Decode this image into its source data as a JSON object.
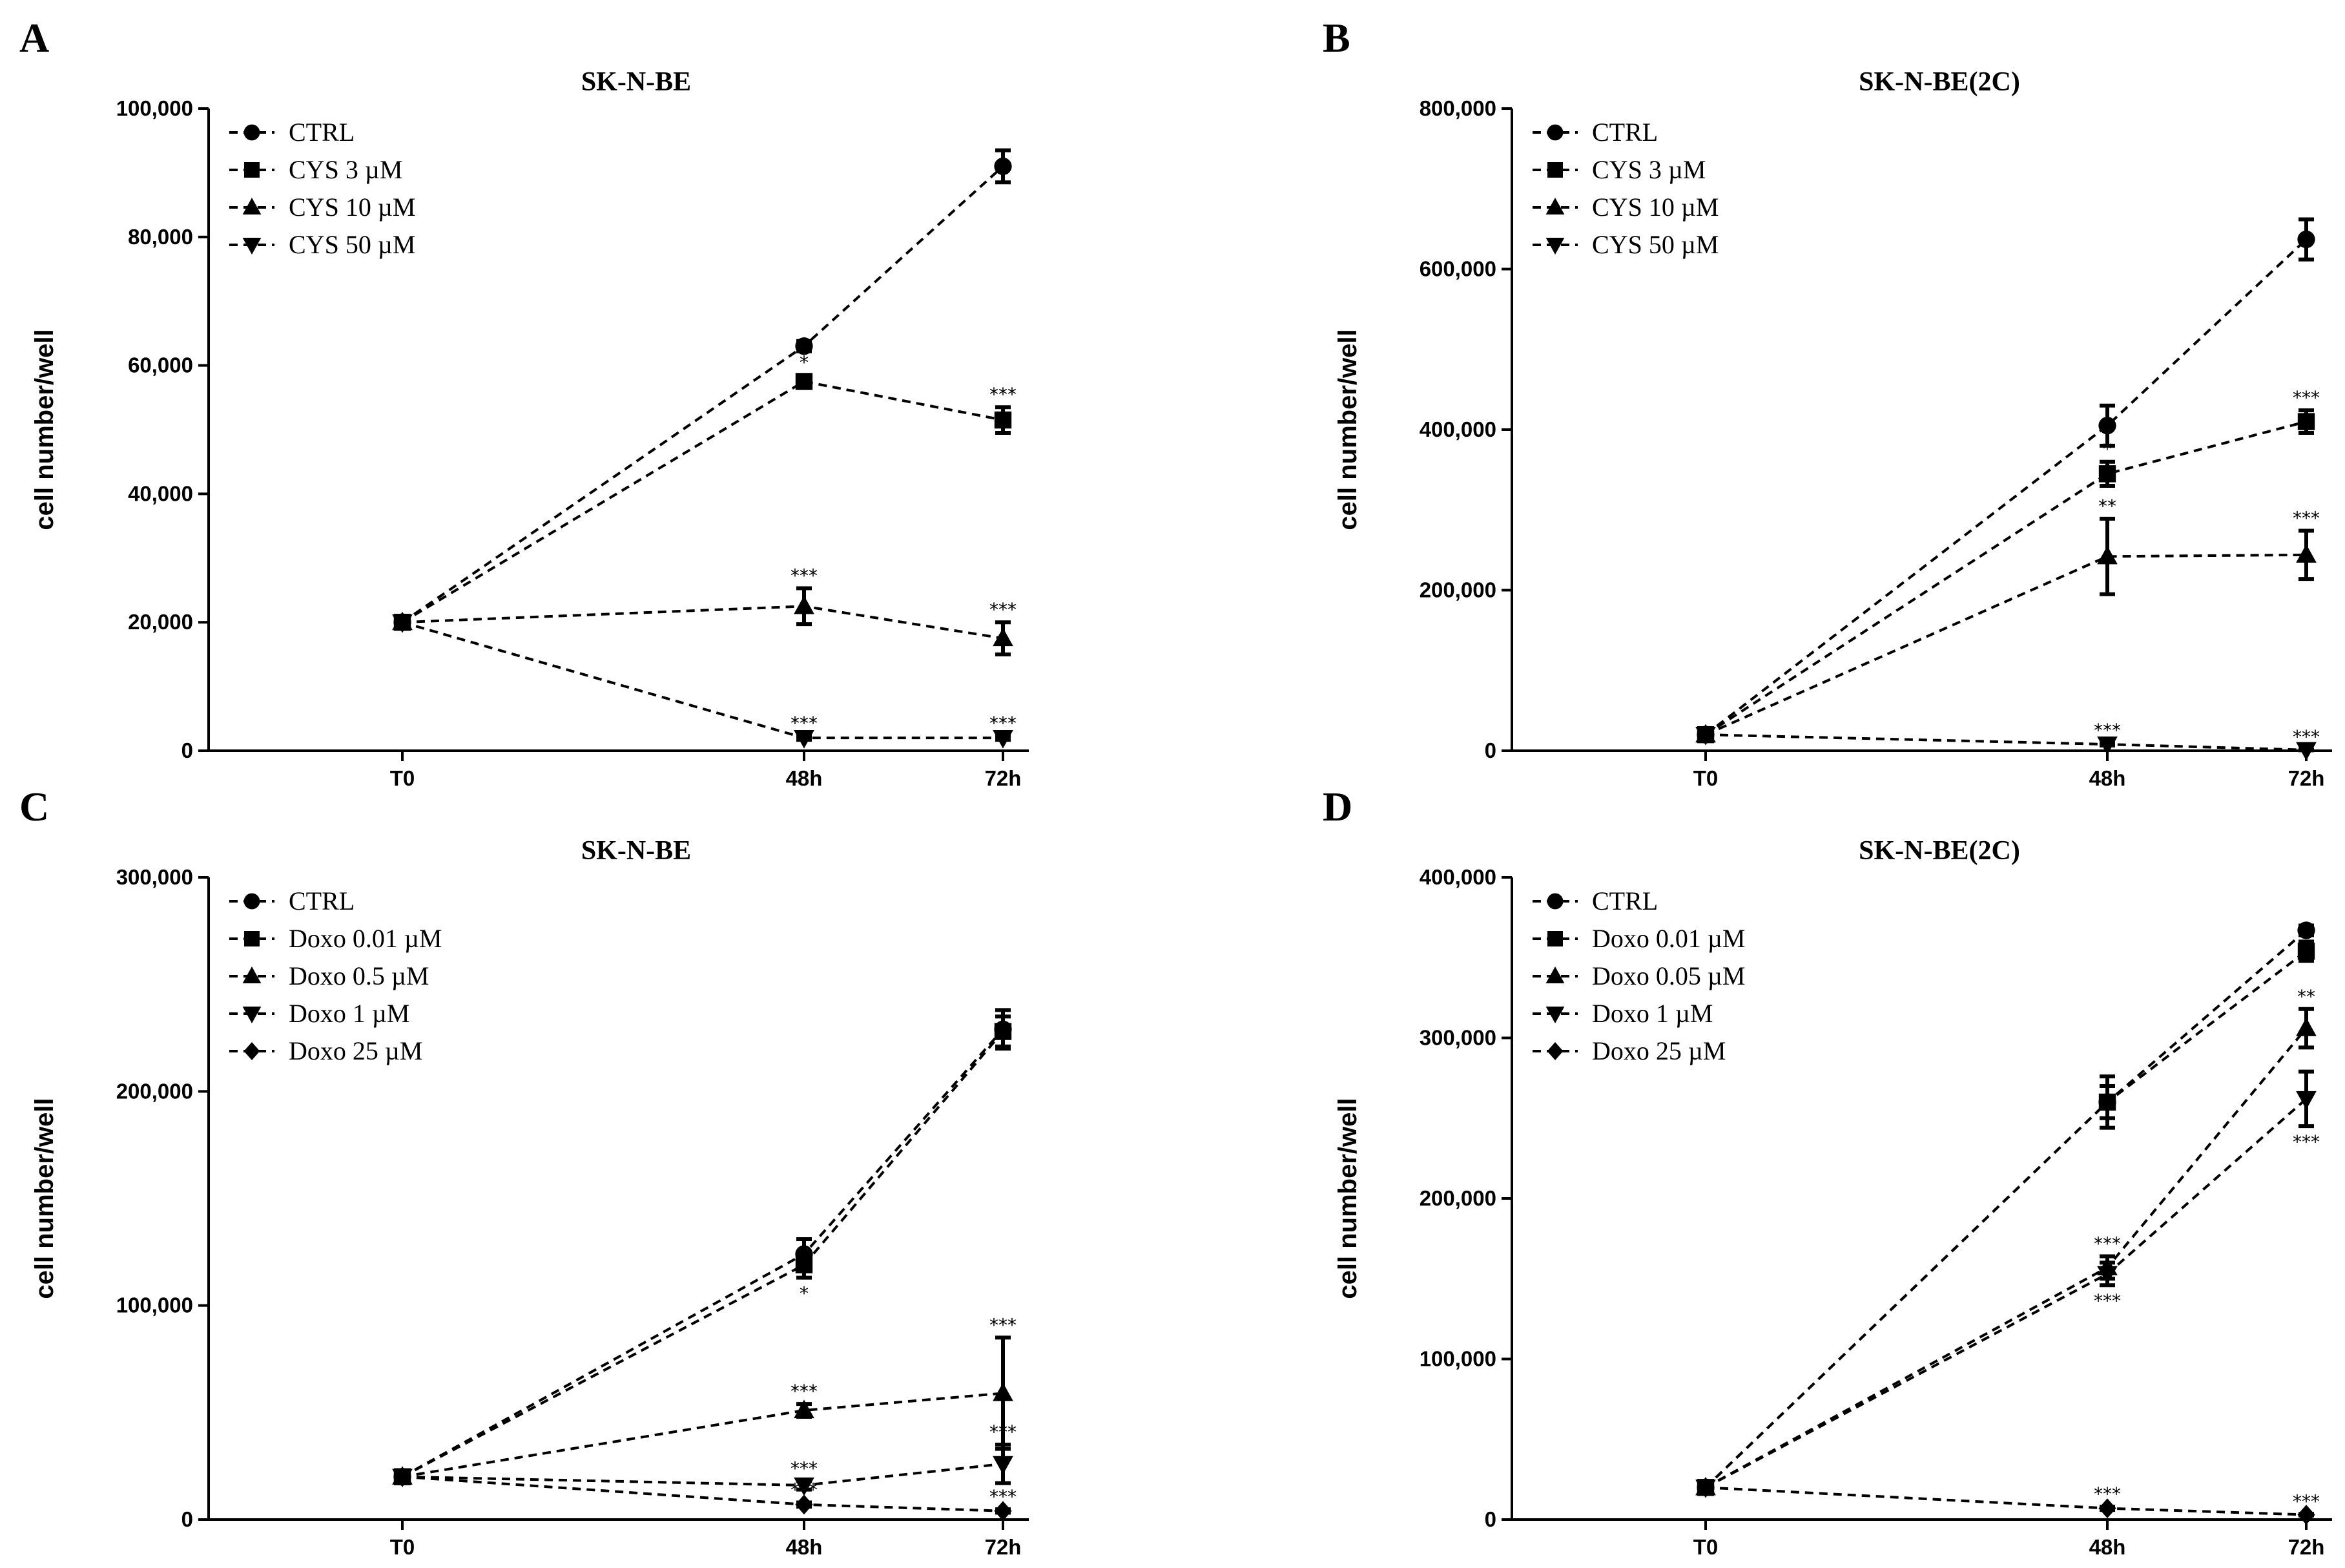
{
  "chart_data": [
    {
      "panel": "A",
      "type": "line",
      "title": "SK-N-BE",
      "ylabel": "cell number/well",
      "xlabel": "",
      "categories": [
        "T0",
        "48h",
        "72h"
      ],
      "yticks": [
        "0",
        "20,000",
        "40,000",
        "60,000",
        "80,000",
        "100,000"
      ],
      "ylim": [
        0,
        100000
      ],
      "legend_position": "top-left",
      "series": [
        {
          "name": "CTRL",
          "marker": "circle",
          "values": [
            20000,
            63000,
            91000
          ],
          "errors": [
            0,
            800,
            2500
          ],
          "annotations": [
            "",
            "",
            ""
          ],
          "annotation_below": [
            false,
            false,
            false
          ]
        },
        {
          "name": "CYS 3 µM",
          "marker": "square",
          "values": [
            20000,
            57500,
            51500
          ],
          "errors": [
            0,
            1000,
            2000
          ],
          "annotations": [
            "",
            "*",
            "***"
          ],
          "annotation_below": [
            false,
            false,
            false
          ]
        },
        {
          "name": "CYS 10 µM",
          "marker": "triangle-up",
          "values": [
            20000,
            22500,
            17500
          ],
          "errors": [
            0,
            2800,
            2500
          ],
          "annotations": [
            "",
            "***",
            "***"
          ],
          "annotation_below": [
            false,
            false,
            false
          ]
        },
        {
          "name": "CYS 50 µM",
          "marker": "triangle-down",
          "values": [
            20000,
            2000,
            2000
          ],
          "errors": [
            0,
            300,
            300
          ],
          "annotations": [
            "",
            "***",
            "***"
          ],
          "annotation_below": [
            false,
            false,
            false
          ]
        }
      ]
    },
    {
      "panel": "B",
      "type": "line",
      "title": "SK-N-BE(2C)",
      "ylabel": "cell number/well",
      "xlabel": "",
      "categories": [
        "T0",
        "48h",
        "72h"
      ],
      "yticks": [
        "0",
        "200,000",
        "400,000",
        "600,000",
        "800,000"
      ],
      "ylim": [
        0,
        800000
      ],
      "legend_position": "top-left",
      "series": [
        {
          "name": "CTRL",
          "marker": "circle",
          "values": [
            20000,
            405000,
            637000
          ],
          "errors": [
            0,
            25000,
            25000
          ],
          "annotations": [
            "",
            "",
            ""
          ],
          "annotation_below": [
            false,
            false,
            false
          ]
        },
        {
          "name": "CYS 3 µM",
          "marker": "square",
          "values": [
            20000,
            345000,
            410000
          ],
          "errors": [
            0,
            15000,
            14000
          ],
          "annotations": [
            "",
            "*",
            "***"
          ],
          "annotation_below": [
            false,
            false,
            false
          ]
        },
        {
          "name": "CYS 10 µM",
          "marker": "triangle-up",
          "values": [
            20000,
            242000,
            244000
          ],
          "errors": [
            0,
            47000,
            30000
          ],
          "annotations": [
            "",
            "**",
            "***"
          ],
          "annotation_below": [
            false,
            false,
            false
          ]
        },
        {
          "name": "CYS 50 µM",
          "marker": "triangle-down",
          "values": [
            20000,
            8000,
            1000
          ],
          "errors": [
            0,
            1500,
            500
          ],
          "annotations": [
            "",
            "***",
            "***"
          ],
          "annotation_below": [
            false,
            false,
            false
          ]
        }
      ]
    },
    {
      "panel": "C",
      "type": "line",
      "title": "SK-N-BE",
      "ylabel": "cell number/well",
      "xlabel": "",
      "categories": [
        "T0",
        "48h",
        "72h"
      ],
      "yticks": [
        "0",
        "100,000",
        "200,000",
        "300,000"
      ],
      "ylim": [
        0,
        300000
      ],
      "legend_position": "top-left",
      "series": [
        {
          "name": "CTRL",
          "marker": "circle",
          "values": [
            20000,
            124000,
            229000
          ],
          "errors": [
            0,
            7000,
            9000
          ],
          "annotations": [
            "",
            "",
            ""
          ],
          "annotation_below": [
            false,
            false,
            false
          ]
        },
        {
          "name": "Doxo 0.01 µM",
          "marker": "square",
          "values": [
            20000,
            119000,
            228000
          ],
          "errors": [
            0,
            6000,
            7000
          ],
          "annotations": [
            "",
            "*",
            ""
          ],
          "annotation_below": [
            false,
            true,
            false
          ]
        },
        {
          "name": "Doxo 0.5 µM",
          "marker": "triangle-up",
          "values": [
            20000,
            51000,
            59000
          ],
          "errors": [
            0,
            3000,
            26000
          ],
          "annotations": [
            "",
            "***",
            "***"
          ],
          "annotation_below": [
            false,
            false,
            false
          ]
        },
        {
          "name": "Doxo 1 µM",
          "marker": "triangle-down",
          "values": [
            20000,
            16000,
            26000
          ],
          "errors": [
            0,
            2000,
            9000
          ],
          "annotations": [
            "",
            "***",
            "***"
          ],
          "annotation_below": [
            false,
            false,
            false
          ]
        },
        {
          "name": "Doxo 25 µM",
          "marker": "diamond",
          "values": [
            20000,
            7000,
            4000
          ],
          "errors": [
            0,
            1000,
            800
          ],
          "annotations": [
            "",
            "***",
            "***"
          ],
          "annotation_below": [
            false,
            false,
            false
          ]
        }
      ]
    },
    {
      "panel": "D",
      "type": "line",
      "title": "SK-N-BE(2C)",
      "ylabel": "cell number/well",
      "xlabel": "",
      "categories": [
        "T0",
        "48h",
        "72h"
      ],
      "yticks": [
        "0",
        "100,000",
        "200,000",
        "300,000",
        "400,000"
      ],
      "ylim": [
        0,
        400000
      ],
      "legend_position": "top-left",
      "series": [
        {
          "name": "CTRL",
          "marker": "circle",
          "values": [
            20000,
            260000,
            367000
          ],
          "errors": [
            0,
            10000,
            3000
          ],
          "annotations": [
            "",
            "",
            ""
          ],
          "annotation_below": [
            false,
            false,
            false
          ]
        },
        {
          "name": "Doxo 0.01 µM",
          "marker": "square",
          "values": [
            20000,
            260000,
            354000
          ],
          "errors": [
            0,
            16000,
            6000
          ],
          "annotations": [
            "",
            "",
            ""
          ],
          "annotation_below": [
            false,
            false,
            false
          ]
        },
        {
          "name": "Doxo 0.05 µM",
          "marker": "triangle-up",
          "values": [
            20000,
            157000,
            306000
          ],
          "errors": [
            0,
            7000,
            12000
          ],
          "annotations": [
            "",
            "***",
            "**"
          ],
          "annotation_below": [
            false,
            false,
            false
          ]
        },
        {
          "name": "Doxo 1 µM",
          "marker": "triangle-down",
          "values": [
            20000,
            153000,
            262000
          ],
          "errors": [
            0,
            7000,
            17000
          ],
          "annotations": [
            "",
            "***",
            "***"
          ],
          "annotation_below": [
            false,
            true,
            true
          ]
        },
        {
          "name": "Doxo 25 µM",
          "marker": "diamond",
          "values": [
            20000,
            7000,
            3000
          ],
          "errors": [
            0,
            1000,
            500
          ],
          "annotations": [
            "",
            "***",
            "***"
          ],
          "annotation_below": [
            false,
            false,
            false
          ]
        }
      ]
    }
  ]
}
